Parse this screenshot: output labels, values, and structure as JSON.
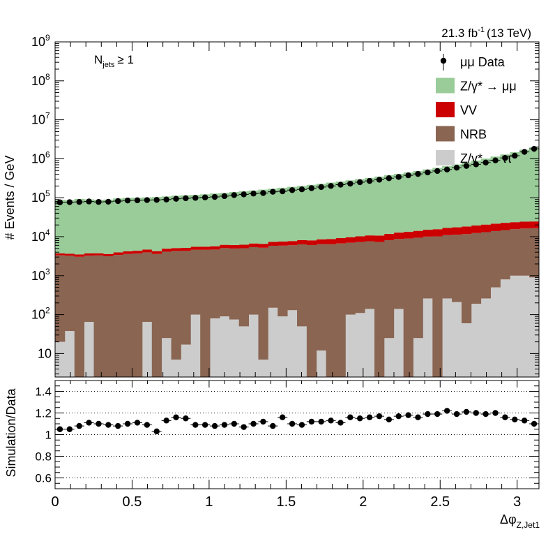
{
  "chart_data": [
    {
      "type": "histogram-stack-log",
      "panel": "main",
      "ylabel": "# Events / GeV",
      "lumi": "21.3 fb",
      "lumi_sup": "-1",
      "energy": "(13 TeV)",
      "selection": {
        "main": "N",
        "sub": "jets",
        "rel": "≥ 1"
      },
      "x": {
        "min": 0,
        "max": 3.1416,
        "nbins": 50
      },
      "ylim": [
        2.5,
        1000000000
      ],
      "yticks": [
        {
          "v": 10,
          "label": "10",
          "sup": ""
        },
        {
          "v": 100,
          "label": "10",
          "sup": "2"
        },
        {
          "v": 1000,
          "label": "10",
          "sup": "3"
        },
        {
          "v": 10000,
          "label": "10",
          "sup": "4"
        },
        {
          "v": 100000,
          "label": "10",
          "sup": "5"
        },
        {
          "v": 1000000,
          "label": "10",
          "sup": "6"
        },
        {
          "v": 10000000,
          "label": "10",
          "sup": "7"
        },
        {
          "v": 100000000,
          "label": "10",
          "sup": "8"
        },
        {
          "v": 1000000000,
          "label": "10",
          "sup": "9"
        }
      ],
      "legend": {
        "placement": "top-right",
        "entries": [
          {
            "label": "μμ Data",
            "style": "marker"
          },
          {
            "label": "Z/γ* → μμ",
            "style": "fill",
            "color": "#99cc99"
          },
          {
            "label": "VV",
            "style": "fill",
            "color": "#cc0000"
          },
          {
            "label": "NRB",
            "style": "fill",
            "color": "#8a6552"
          },
          {
            "label": "Z/γ* → ττ",
            "style": "fill",
            "color": "#cccccc"
          }
        ]
      },
      "series": [
        {
          "name": "Z/γ* → ττ",
          "color": "#cccccc",
          "values": [
            20,
            38,
            0,
            65,
            0,
            0,
            0,
            0,
            0,
            65,
            0,
            25,
            7,
            17,
            100,
            0,
            80,
            90,
            75,
            50,
            100,
            7,
            150,
            90,
            130,
            50,
            0,
            12,
            0,
            0,
            100,
            110,
            140,
            0,
            25,
            140,
            0,
            25,
            260,
            0,
            260,
            210,
            60,
            190,
            260,
            500,
            800,
            1000,
            1000,
            900
          ]
        },
        {
          "name": "NRB",
          "color": "#8a6552",
          "values": [
            3300,
            3200,
            3050,
            3200,
            3300,
            3150,
            3400,
            3600,
            3700,
            3900,
            3600,
            4100,
            4300,
            4300,
            4500,
            4600,
            4600,
            5000,
            4900,
            5000,
            5300,
            5200,
            5700,
            5800,
            5900,
            6300,
            6100,
            6400,
            6400,
            6700,
            6900,
            7200,
            7500,
            7300,
            8100,
            8600,
            9000,
            9400,
            9800,
            10200,
            10700,
            11000,
            11600,
            12200,
            12800,
            13400,
            14000,
            14600,
            15200,
            15600
          ]
        },
        {
          "name": "VV",
          "color": "#cc0000",
          "values": [
            400,
            400,
            450,
            450,
            450,
            450,
            550,
            600,
            650,
            700,
            650,
            800,
            800,
            850,
            900,
            950,
            1000,
            1100,
            1150,
            1200,
            1300,
            1350,
            1500,
            1600,
            1700,
            1850,
            1950,
            2150,
            2300,
            2500,
            2700,
            2900,
            3150,
            3400,
            3700,
            4000,
            4300,
            4700,
            5000,
            5400,
            5800,
            6200,
            6600,
            7000,
            7400,
            7700,
            7900,
            8000,
            8100,
            8100
          ]
        },
        {
          "name": "Z/γ* → μμ",
          "color": "#99cc99",
          "values": [
            84000,
            83000,
            90000,
            87000,
            85000,
            86000,
            92000,
            95000,
            96000,
            97000,
            100000,
            103000,
            108000,
            111000,
            113000,
            117000,
            123000,
            127000,
            134000,
            140000,
            147000,
            155000,
            163000,
            173000,
            183000,
            193000,
            206000,
            220000,
            236000,
            252000,
            270000,
            290000,
            312000,
            338000,
            366000,
            398000,
            432000,
            472000,
            518000,
            570000,
            630000,
            700000,
            785000,
            880000,
            990000,
            1120000,
            1270000,
            1460000,
            1690000,
            1960000
          ]
        }
      ],
      "data": {
        "name": "μμ Data",
        "values": [
          76000,
          77000,
          78000,
          80000,
          78000,
          79000,
          82000,
          85000,
          86000,
          87000,
          88000,
          90000,
          94000,
          97000,
          99000,
          102000,
          105000,
          110000,
          117000,
          122000,
          128000,
          132000,
          142000,
          146000,
          157000,
          164000,
          176000,
          188000,
          201000,
          216000,
          230000,
          250000,
          270000,
          290000,
          317000,
          342000,
          376000,
          408000,
          446000,
          485000,
          529000,
          590000,
          655000,
          720000,
          800000,
          909000,
          1050000,
          1200000,
          1500000,
          1800000
        ]
      }
    },
    {
      "type": "scatter",
      "panel": "ratio",
      "ylabel": "Simulation/Data",
      "xlabel": "Δφ",
      "xlabel_sub": "Z,Jet1",
      "ylim": [
        0.5,
        1.5
      ],
      "yticks": [
        "0.6",
        "0.8",
        "1",
        "1.2",
        "1.4"
      ],
      "xticks": [
        "0",
        "0.5",
        "1",
        "1.5",
        "2",
        "2.5",
        "3"
      ],
      "grid": "horizontal dotted",
      "y": [
        1.05,
        1.05,
        1.08,
        1.11,
        1.1,
        1.09,
        1.08,
        1.1,
        1.11,
        1.09,
        1.03,
        1.13,
        1.16,
        1.15,
        1.09,
        1.09,
        1.08,
        1.09,
        1.1,
        1.07,
        1.1,
        1.12,
        1.08,
        1.16,
        1.1,
        1.09,
        1.12,
        1.12,
        1.13,
        1.11,
        1.16,
        1.15,
        1.16,
        1.17,
        1.14,
        1.17,
        1.18,
        1.16,
        1.19,
        1.19,
        1.22,
        1.19,
        1.21,
        1.2,
        1.19,
        1.2,
        1.16,
        1.14,
        1.13,
        1.1
      ]
    }
  ]
}
